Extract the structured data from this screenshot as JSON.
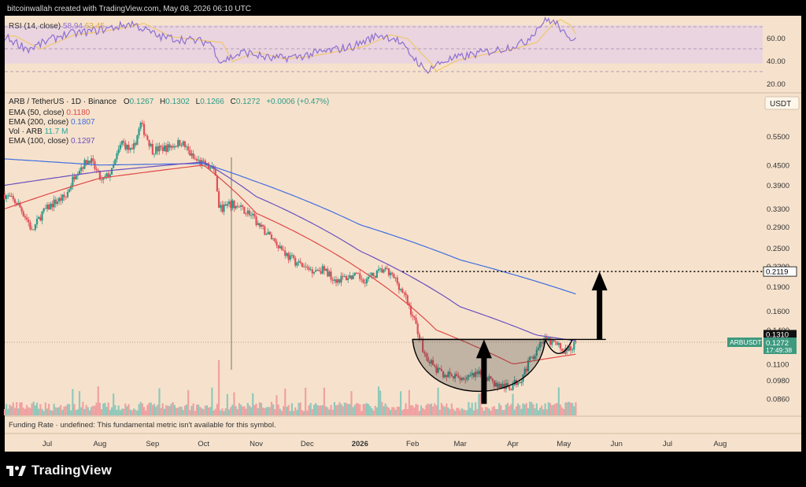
{
  "header": {
    "credit": "bitcoinwallah created with TradingView.com, May 08, 2026 06:10 UTC"
  },
  "rsi": {
    "label": "RSI (14, close)",
    "value": "58.94",
    "ma_value": "63.45",
    "levels": [
      "60.00",
      "40.00",
      "20.00"
    ],
    "color": "#8e6fd0",
    "ma_color": "#f2c76a"
  },
  "legend": {
    "symbol_line": "ARB / TetherUS · 1D · Binance",
    "ohlc": [
      {
        "k": "O",
        "v": "0.1267"
      },
      {
        "k": "H",
        "v": "0.1302"
      },
      {
        "k": "L",
        "v": "0.1266"
      },
      {
        "k": "C",
        "v": "0.1272"
      }
    ],
    "change": "+0.0006 (+0.47%)",
    "studies": [
      {
        "label": "EMA (50, close)",
        "value": "0.1180",
        "color": "#e04848"
      },
      {
        "label": "EMA (200, close)",
        "value": "0.1807",
        "color": "#3f6de0"
      },
      {
        "label": "Vol · ARB",
        "value": "11.7 M",
        "color": "#2aa59a"
      },
      {
        "label": "EMA (100, close)",
        "value": "0.1297",
        "color": "#6b4fbf"
      }
    ]
  },
  "axis": {
    "currency": "USDT",
    "price_ticks": [
      "0.5500",
      "0.4500",
      "0.3900",
      "0.3300",
      "0.2900",
      "0.2500",
      "0.2200",
      "0.1900",
      "0.1600",
      "0.1400",
      "0.1100",
      "0.0980",
      "0.0860"
    ],
    "month_ticks": [
      "Jul",
      "Aug",
      "Sep",
      "Oct",
      "Nov",
      "Dec",
      "2026",
      "Feb",
      "Mar",
      "Apr",
      "May",
      "Jun",
      "Jul",
      "Aug"
    ]
  },
  "price_labels": {
    "target": "0.2119",
    "neckline": "0.1310",
    "symbol_tag": "ARBUSDT",
    "last_price": "0.1272",
    "countdown": "17:49:38"
  },
  "footer": {
    "funding": "Funding Rate · undefined: This fundamental metric isn't available for this symbol."
  },
  "brand": {
    "name": "TradingView"
  },
  "colors": {
    "background": "#f6e2cc",
    "up": "#2b9b8a",
    "down": "#e0505a",
    "volume_up": "#8fc9bb",
    "volume_down": "#f0a1a1",
    "rsi_band": "#e9d4df"
  },
  "chart_data": {
    "type": "candlestick",
    "pair": "ARB / TetherUS",
    "timeframe": "1D",
    "exchange": "Binance",
    "y_scale": "log",
    "ylim": [
      0.08,
      0.66
    ],
    "x_range": [
      "2025-06-06",
      "2026-08-26"
    ],
    "approx_closes": {
      "description": "Approximate daily close path read from the chart (date, close)",
      "points": [
        [
          "2025-06-06",
          0.365
        ],
        [
          "2025-06-14",
          0.34
        ],
        [
          "2025-06-20",
          0.3
        ],
        [
          "2025-06-22",
          0.28
        ],
        [
          "2025-06-28",
          0.32
        ],
        [
          "2025-07-05",
          0.345
        ],
        [
          "2025-07-12",
          0.36
        ],
        [
          "2025-07-18",
          0.43
        ],
        [
          "2025-07-26",
          0.47
        ],
        [
          "2025-08-02",
          0.4
        ],
        [
          "2025-08-08",
          0.43
        ],
        [
          "2025-08-14",
          0.53
        ],
        [
          "2025-08-20",
          0.49
        ],
        [
          "2025-08-25",
          0.6
        ],
        [
          "2025-09-01",
          0.5
        ],
        [
          "2025-09-10",
          0.51
        ],
        [
          "2025-09-18",
          0.53
        ],
        [
          "2025-09-25",
          0.47
        ],
        [
          "2025-10-02",
          0.45
        ],
        [
          "2025-10-08",
          0.43
        ],
        [
          "2025-10-10",
          0.33
        ],
        [
          "2025-10-18",
          0.34
        ],
        [
          "2025-10-28",
          0.32
        ],
        [
          "2025-11-03",
          0.29
        ],
        [
          "2025-11-10",
          0.27
        ],
        [
          "2025-11-20",
          0.235
        ],
        [
          "2025-12-01",
          0.215
        ],
        [
          "2025-12-10",
          0.215
        ],
        [
          "2025-12-18",
          0.2
        ],
        [
          "2025-12-28",
          0.205
        ],
        [
          "2026-01-05",
          0.2
        ],
        [
          "2026-01-15",
          0.215
        ],
        [
          "2026-01-22",
          0.2
        ],
        [
          "2026-01-28",
          0.175
        ],
        [
          "2026-02-03",
          0.145
        ],
        [
          "2026-02-08",
          0.118
        ],
        [
          "2026-02-15",
          0.105
        ],
        [
          "2026-02-25",
          0.1
        ],
        [
          "2026-03-06",
          0.1
        ],
        [
          "2026-03-15",
          0.103
        ],
        [
          "2026-03-22",
          0.095
        ],
        [
          "2026-03-30",
          0.093
        ],
        [
          "2026-04-06",
          0.1
        ],
        [
          "2026-04-12",
          0.115
        ],
        [
          "2026-04-18",
          0.13
        ],
        [
          "2026-04-25",
          0.128
        ],
        [
          "2026-05-01",
          0.121
        ],
        [
          "2026-05-04",
          0.122
        ],
        [
          "2026-05-08",
          0.1272
        ]
      ]
    },
    "ema_200": [
      [
        "2025-06-06",
        0.47
      ],
      [
        "2025-08-01",
        0.45
      ],
      [
        "2025-10-01",
        0.455
      ],
      [
        "2025-11-01",
        0.4
      ],
      [
        "2026-01-01",
        0.295
      ],
      [
        "2026-03-01",
        0.23
      ],
      [
        "2026-05-08",
        0.1807
      ]
    ],
    "ema_100": [
      [
        "2025-06-06",
        0.39
      ],
      [
        "2025-08-01",
        0.43
      ],
      [
        "2025-10-01",
        0.46
      ],
      [
        "2025-11-01",
        0.36
      ],
      [
        "2026-01-01",
        0.245
      ],
      [
        "2026-03-01",
        0.165
      ],
      [
        "2026-04-15",
        0.135
      ],
      [
        "2026-05-08",
        0.1297
      ]
    ],
    "ema_50": [
      [
        "2025-06-06",
        0.33
      ],
      [
        "2025-08-01",
        0.41
      ],
      [
        "2025-10-01",
        0.45
      ],
      [
        "2025-11-01",
        0.32
      ],
      [
        "2026-01-01",
        0.215
      ],
      [
        "2026-02-15",
        0.14
      ],
      [
        "2026-04-01",
        0.11
      ],
      [
        "2026-05-08",
        0.118
      ]
    ],
    "rsi_series": [
      [
        "2025-06-06",
        58
      ],
      [
        "2025-06-20",
        45
      ],
      [
        "2025-07-10",
        60
      ],
      [
        "2025-07-25",
        63
      ],
      [
        "2025-08-10",
        68
      ],
      [
        "2025-08-20",
        72
      ],
      [
        "2025-09-05",
        58
      ],
      [
        "2025-09-20",
        55
      ],
      [
        "2025-10-05",
        52
      ],
      [
        "2025-10-11",
        32
      ],
      [
        "2025-10-25",
        42
      ],
      [
        "2025-11-10",
        35
      ],
      [
        "2025-11-25",
        37
      ],
      [
        "2025-12-10",
        42
      ],
      [
        "2025-12-28",
        48
      ],
      [
        "2026-01-12",
        60
      ],
      [
        "2026-01-22",
        56
      ],
      [
        "2026-02-05",
        30
      ],
      [
        "2026-02-08",
        22
      ],
      [
        "2026-02-20",
        33
      ],
      [
        "2026-03-10",
        40
      ],
      [
        "2026-03-25",
        45
      ],
      [
        "2026-04-08",
        52
      ],
      [
        "2026-04-18",
        72
      ],
      [
        "2026-04-22",
        76
      ],
      [
        "2026-04-28",
        70
      ],
      [
        "2026-05-03",
        55
      ],
      [
        "2026-05-08",
        58.94
      ]
    ],
    "volume_peak": "2025-10-10",
    "annotations": {
      "cup_and_handle": {
        "rim_price": 0.131,
        "cup_start": "2026-02-01",
        "cup_end": "2026-04-20",
        "cup_low": 0.083,
        "handle_end": "2026-05-06",
        "handle_low": 0.116
      },
      "target_level": 0.2119,
      "target_from": "2026-01-26",
      "arrows": [
        {
          "from_date": "2026-03-15",
          "from_price": 0.083,
          "to_price": 0.131
        },
        {
          "from_date": "2026-05-22",
          "from_price": 0.131,
          "to_price": 0.2119
        }
      ]
    }
  }
}
